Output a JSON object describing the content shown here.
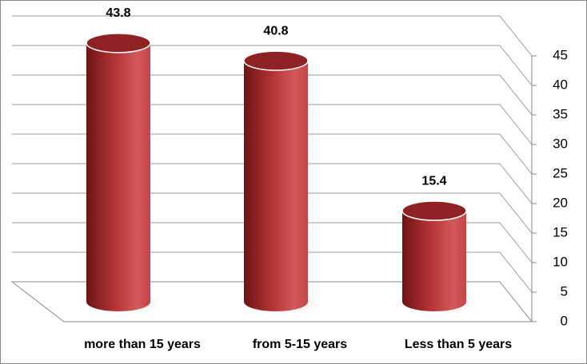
{
  "chart_data": {
    "type": "bar",
    "categories": [
      "more than 15 years",
      "from 5-15 years",
      "Less than 5 years"
    ],
    "values": [
      43.8,
      40.8,
      15.4
    ],
    "color": "#c0393b",
    "ylim": [
      0,
      45
    ],
    "yticks": [
      0,
      5,
      10,
      15,
      20,
      25,
      30,
      35,
      40,
      45
    ],
    "grid": true
  }
}
